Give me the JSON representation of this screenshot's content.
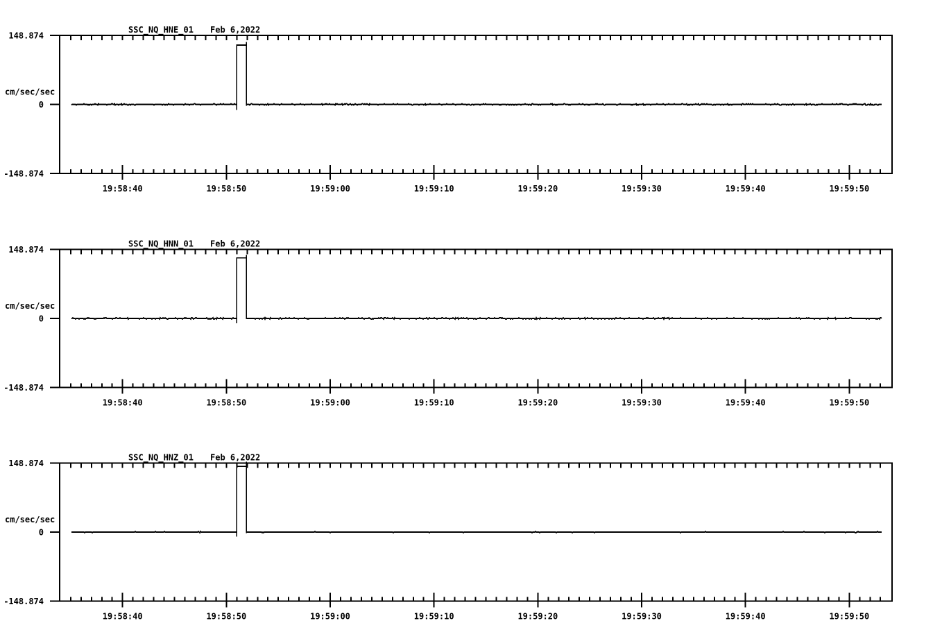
{
  "page": {
    "background_color": "#ffffff",
    "line_color": "#000000"
  },
  "chart_data": {
    "type": "line",
    "kind": "seismic-waveform-strip-panels",
    "ylabel": "cm/sec/sec",
    "ylim": [
      -148.874,
      148.874
    ],
    "ytick_labels": [
      "148.874",
      "0",
      "-148.874"
    ],
    "ytick_values": [
      148.874,
      0,
      -148.874
    ],
    "time_base": "19:58:00",
    "x_window_s": [
      33.94,
      114.12
    ],
    "minor_tick_interval_s": 1,
    "minor_tick_range_s": [
      35,
      113
    ],
    "xticks": [
      {
        "s": 40,
        "label": "19:58:40"
      },
      {
        "s": 50,
        "label": "19:58:50"
      },
      {
        "s": 60,
        "label": "19:59:00"
      },
      {
        "s": 70,
        "label": "19:59:10"
      },
      {
        "s": 80,
        "label": "19:59:20"
      },
      {
        "s": 90,
        "label": "19:59:30"
      },
      {
        "s": 100,
        "label": "19:59:40"
      },
      {
        "s": 110,
        "label": "19:59:50"
      }
    ],
    "panels": [
      {
        "title": "SSC_NQ_HNE_01",
        "date_label": "Feb 6,2022",
        "trace": {
          "start_s": 35.1,
          "end_s": 113.1,
          "baseline": 0,
          "noise_amp": 1.1,
          "pulse": {
            "start_s": 51.0,
            "end_s": 51.93,
            "plateau": 128,
            "overshoot": 134.5,
            "onset_dip": -12,
            "tail_dip": -3
          }
        }
      },
      {
        "title": "SSC_NQ_HNN_01",
        "date_label": "Feb 6,2022",
        "trace": {
          "start_s": 35.1,
          "end_s": 113.1,
          "baseline": 0,
          "noise_amp": 1.1,
          "pulse": {
            "start_s": 51.0,
            "end_s": 51.93,
            "plateau": 130.5,
            "overshoot": 137,
            "onset_dip": -10.5,
            "tail_dip": -1.5
          }
        }
      },
      {
        "title": "SSC_NQ_HNZ_01",
        "date_label": "Feb 6,2022",
        "trace": {
          "start_s": 35.1,
          "end_s": 113.1,
          "baseline": 0,
          "noise_amp": 0.9,
          "pulse": {
            "start_s": 51.0,
            "end_s": 51.93,
            "plateau": 141.5,
            "overshoot": 152.2,
            "onset_dip": -10,
            "tail_dip": -2
          }
        }
      }
    ]
  }
}
